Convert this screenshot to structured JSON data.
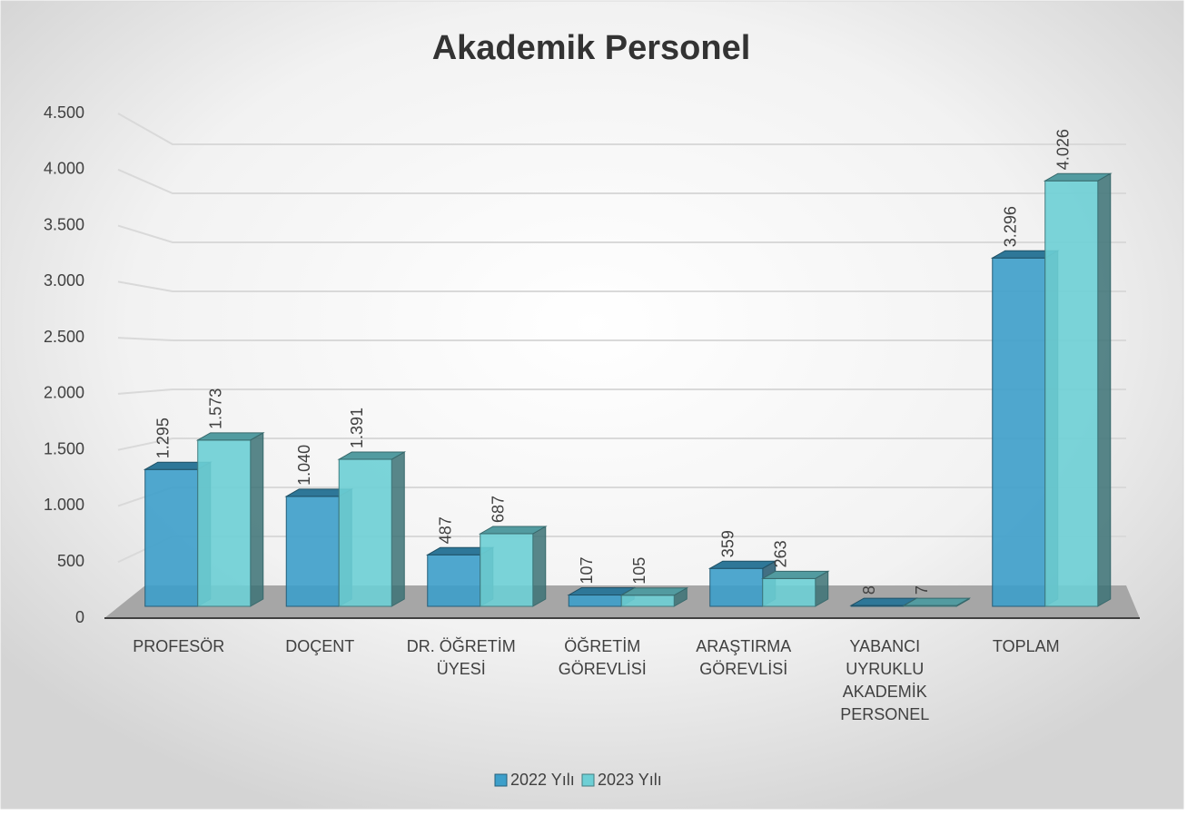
{
  "chart_data": {
    "type": "bar3d",
    "title": "Akademik Personel",
    "categories": [
      [
        "PROFESÖR"
      ],
      [
        "DOÇENT"
      ],
      [
        "DR. ÖĞRETİM",
        "ÜYESİ"
      ],
      [
        "ÖĞRETİM",
        "GÖREVLİSİ"
      ],
      [
        "ARAŞTIRMA",
        "GÖREVLİSİ"
      ],
      [
        "YABANCI",
        "UYRUKLU",
        "AKADEMİK",
        "PERSONEL"
      ],
      [
        "TOPLAM"
      ]
    ],
    "series": [
      {
        "name": "2022 Yılı",
        "color": "#3d9fca",
        "values": [
          1295,
          1040,
          487,
          107,
          359,
          8,
          3296
        ],
        "value_labels": [
          "1.295",
          "1.040",
          "487",
          "107",
          "359",
          "8",
          "3.296"
        ]
      },
      {
        "name": "2023 Yılı",
        "color": "#6dcfd5",
        "values": [
          1573,
          1391,
          687,
          105,
          263,
          7,
          4026
        ],
        "value_labels": [
          "1.573",
          "1.391",
          "687",
          "105",
          "263",
          "7",
          "4.026"
        ]
      }
    ],
    "ylim": [
      0,
      4500
    ],
    "yticks": [
      0,
      500,
      {
        "value": 1000,
        "label": "1.000"
      },
      {
        "value": 1500,
        "label": "1.500"
      },
      {
        "value": 2000,
        "label": "2.000"
      },
      {
        "value": 2500,
        "label": "2.500"
      },
      {
        "value": 3000,
        "label": "3.000"
      },
      {
        "value": 3500,
        "label": "3.500"
      },
      {
        "value": 4000,
        "label": "4.000"
      },
      {
        "value": 4500,
        "label": "4.500"
      }
    ],
    "grid": true,
    "legend": "bottom"
  }
}
